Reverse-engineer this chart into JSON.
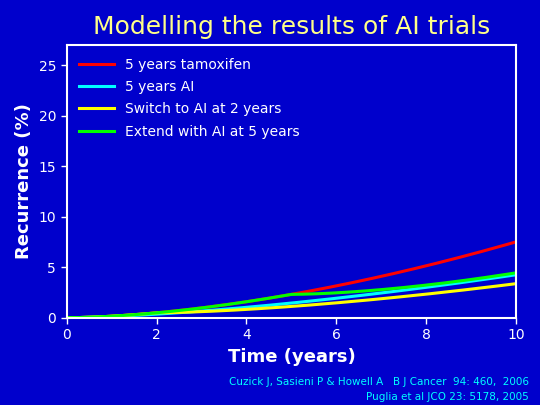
{
  "title": "Modelling the results of AI trials",
  "title_color": "#FFFF88",
  "title_fontsize": 18,
  "background_color": "#0000CC",
  "plot_bg_color": "#0000CC",
  "xlabel": "Time (years)",
  "ylabel": "Recurrence (%)",
  "axis_label_color": "white",
  "axis_label_fontsize": 13,
  "tick_color": "white",
  "tick_fontsize": 10,
  "xlim": [
    0,
    10
  ],
  "ylim": [
    0,
    27
  ],
  "xticks": [
    0,
    2,
    4,
    6,
    8,
    10
  ],
  "yticks": [
    0,
    5,
    10,
    15,
    20,
    25
  ],
  "legend_text_color": "white",
  "legend_fontsize": 10,
  "line_width": 2.2,
  "footnote1": "Cuzick J, Sasieni P & Howell A   B J Cancer  94: 460,  2006",
  "footnote2": "Puglia et al JCO 23: 5178, 2005",
  "footnote_color": "#00FFFF",
  "footnote_fontsize": 7.5
}
